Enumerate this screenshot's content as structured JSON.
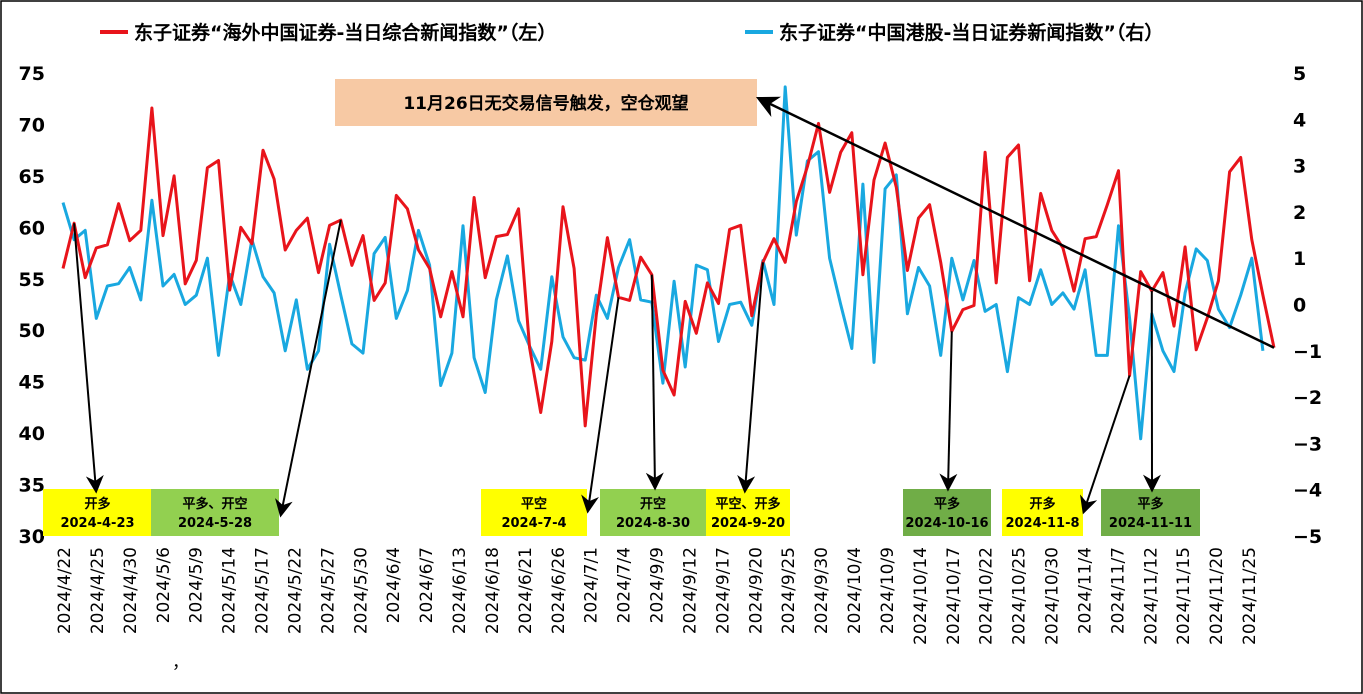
{
  "chart_data": {
    "type": "line",
    "legend_placement": "top",
    "grid": false,
    "colors": {
      "left_series": "#e8141b",
      "right_series": "#19a8e0",
      "arrows": "#000000",
      "callout_bg": "#f7c9a4",
      "box_yellow": "#ffff00",
      "box_lightgreen": "#92d050",
      "box_green": "#70ad47"
    },
    "series": [
      {
        "name": "东子证券“海外中国证券-当日综合新闻指数”（左）",
        "axis": "left",
        "values": [
          56.0,
          60.4,
          55.1,
          58.0,
          58.3,
          62.3,
          58.7,
          59.7,
          71.6,
          59.2,
          65.0,
          54.5,
          56.8,
          65.8,
          66.5,
          53.9,
          60.0,
          58.4,
          67.5,
          64.7,
          57.8,
          59.7,
          60.9,
          55.6,
          60.2,
          60.7,
          56.3,
          59.2,
          52.9,
          54.6,
          63.1,
          61.8,
          57.8,
          56.0,
          51.3,
          55.7,
          51.3,
          62.9,
          55.1,
          59.1,
          59.3,
          61.8,
          48.3,
          42.0,
          48.9,
          62.0,
          56.0,
          40.7,
          51.5,
          59.0,
          53.2,
          52.9,
          57.1,
          55.4,
          46.1,
          43.7,
          52.8,
          49.7,
          54.6,
          52.6,
          59.8,
          60.2,
          51.4,
          56.6,
          58.9,
          56.6,
          62.5,
          65.9,
          70.1,
          63.4,
          67.3,
          69.2,
          55.4,
          64.6,
          68.2,
          63.9,
          55.8,
          60.9,
          62.2,
          56.6,
          49.9,
          52.0,
          52.4,
          67.3,
          54.6,
          66.8,
          68.0,
          54.8,
          63.3,
          59.7,
          58.0,
          53.8,
          58.9,
          59.1,
          62.2,
          65.5,
          45.6,
          55.7,
          53.8,
          55.6,
          50.4,
          58.1,
          48.1,
          51.2,
          54.8,
          65.4,
          66.8,
          58.8,
          53.4,
          48.3
        ]
      },
      {
        "name": "东子证券“中国港股-当日证券新闻指数”（右）",
        "axis": "right",
        "values": [
          2.2,
          1.4,
          1.6,
          -0.3,
          0.4,
          0.45,
          0.8,
          0.1,
          2.25,
          0.4,
          0.65,
          0.0,
          0.2,
          1.0,
          -1.1,
          0.65,
          0.0,
          1.4,
          0.6,
          0.25,
          -1.0,
          0.1,
          -1.4,
          -1.0,
          1.3,
          0.2,
          -0.85,
          -1.05,
          1.1,
          1.45,
          -0.3,
          0.3,
          1.6,
          0.85,
          -1.75,
          -1.05,
          1.7,
          -1.15,
          -1.9,
          0.1,
          1.05,
          -0.35,
          -0.9,
          -1.4,
          0.6,
          -0.7,
          -1.15,
          -1.2,
          0.2,
          -0.3,
          0.8,
          1.4,
          0.1,
          0.05,
          -1.7,
          0.5,
          -1.35,
          0.85,
          0.75,
          -0.8,
          0.0,
          0.05,
          -0.45,
          0.95,
          0.0,
          4.7,
          1.5,
          3.1,
          3.3,
          1.0,
          0.0,
          -0.95,
          2.6,
          -1.25,
          2.5,
          2.8,
          -0.2,
          0.8,
          0.4,
          -1.1,
          1.0,
          0.1,
          0.95,
          -0.15,
          0.0,
          -1.45,
          0.15,
          0.0,
          0.75,
          0.0,
          0.25,
          -0.1,
          0.75,
          -1.1,
          -1.1,
          1.7,
          -0.3,
          -2.9,
          -0.2,
          -1.0,
          -1.45,
          0.25,
          1.2,
          0.95,
          -0.1,
          -0.5,
          0.2,
          1.0,
          -1.0
        ]
      }
    ],
    "left_axis": {
      "ylim": [
        30,
        75
      ],
      "ticks": [
        "30",
        "35",
        "40",
        "45",
        "50",
        "55",
        "60",
        "65",
        "70",
        "75"
      ]
    },
    "right_axis": {
      "ylim": [
        -5,
        5
      ],
      "ticks": [
        "−5",
        "−4",
        "−3",
        "−2",
        "−1",
        "0",
        "1",
        "2",
        "3",
        "4",
        "5"
      ]
    },
    "x_tick_labels": [
      "2024/4/22",
      "2024/4/25",
      "2024/4/30",
      "2024/5/6",
      "2024/5/9",
      "2024/5/14",
      "2024/5/17",
      "2024/5/22",
      "2024/5/27",
      "2024/5/30",
      "2024/6/4",
      "2024/6/7",
      "2024/6/13",
      "2024/6/18",
      "2024/6/21",
      "2024/6/26",
      "2024/7/1",
      "2024/7/4",
      "2024/9/9",
      "2024/9/12",
      "2024/9/17",
      "2024/9/20",
      "2024/9/25",
      "2024/9/30",
      "2024/10/4",
      "2024/10/9",
      "2024/10/14",
      "2024/10/17",
      "2024/10/22",
      "2024/10/25",
      "2024/10/30",
      "2024/11/4",
      "2024/11/7",
      "2024/11/12",
      "2024/11/15",
      "2024/11/20",
      "2024/11/25"
    ],
    "stray_mark": "，",
    "callout": "11月26日无交易信号触发，空仓观望",
    "signals": [
      {
        "action": "开多",
        "date": "2024-4-23",
        "color": "yellow",
        "point_index": 1
      },
      {
        "action": "平多、开空",
        "date": "2024-5-28",
        "color": "lightgreen",
        "point_index": 25
      },
      {
        "action": "平空",
        "date": "2024-7-4",
        "color": "yellow",
        "point_index": 50
      },
      {
        "action": "开空",
        "date": "2024-8-30",
        "color": "lightgreen",
        "point_index": 53
      },
      {
        "action": "平空、开多",
        "date": "2024-9-20",
        "color": "yellow",
        "point_index": 63
      },
      {
        "action": "平多",
        "date": "2024-10-16",
        "color": "green",
        "point_index": 80
      },
      {
        "action": "开多",
        "date": "2024-11-8",
        "color": "yellow",
        "point_index": 96
      },
      {
        "action": "平多",
        "date": "2024-11-11",
        "color": "green",
        "point_index": 98
      }
    ]
  }
}
